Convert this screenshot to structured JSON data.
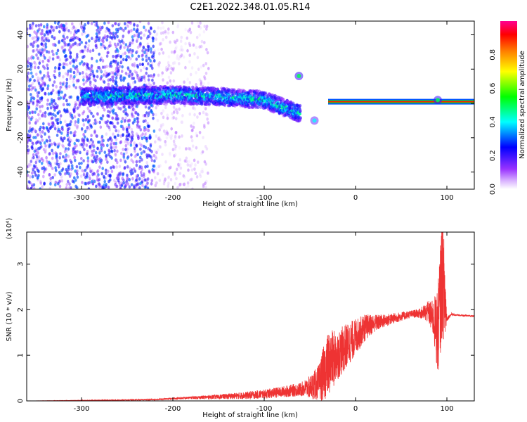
{
  "figure": {
    "title": "C2E1.2022.348.01.05.R14"
  },
  "chart_data": [
    {
      "type": "heatmap",
      "name": "spectrogram",
      "xlabel": "Height of straight line (km)",
      "ylabel": "Frequency (Hz)",
      "xlim": [
        -360,
        130
      ],
      "ylim": [
        -50,
        48
      ],
      "xticks": [
        -300,
        -200,
        -100,
        0,
        100
      ],
      "yticks": [
        -40,
        -20,
        0,
        20,
        40
      ],
      "grid": false,
      "colorbar": {
        "label": "Normalized spectral amplitude",
        "range": [
          0,
          1
        ],
        "ticks": [
          "0.0",
          "0.2",
          "0.4",
          "0.6",
          "0.8"
        ],
        "colors": [
          "#ffffff",
          "#c9a0ff",
          "#8000ff",
          "#0000ff",
          "#00ffff",
          "#00ff00",
          "#ffff00",
          "#ff8000",
          "#ff0000",
          "#ff00a0"
        ]
      },
      "features": [
        {
          "kind": "noise",
          "x_range": [
            -360,
            -220
          ],
          "f_range": [
            -50,
            48
          ],
          "amplitude": 0.25
        },
        {
          "kind": "noise",
          "x_range": [
            -220,
            -160
          ],
          "f_range": [
            -50,
            48
          ],
          "amplitude": 0.08
        },
        {
          "kind": "ridge",
          "points": [
            [
              -300,
              4
            ],
            [
              -200,
              5
            ],
            [
              -150,
              4
            ],
            [
              -100,
              2
            ],
            [
              -70,
              -4
            ],
            [
              -60,
              -6
            ]
          ],
          "amplitude": 0.45
        },
        {
          "kind": "line",
          "x_range": [
            -30,
            130
          ],
          "frequency": 1,
          "amplitude": 0.9
        },
        {
          "kind": "spot",
          "x": -62,
          "f": 16,
          "amplitude": 0.5
        },
        {
          "kind": "spot",
          "x": -45,
          "f": -10,
          "amplitude": 0.4
        },
        {
          "kind": "spot",
          "x": 90,
          "f": 2,
          "amplitude": 0.5
        }
      ]
    },
    {
      "type": "line",
      "name": "snr",
      "xlabel": "Height of straight line (km)",
      "ylabel": "SNR (10 * v/v)",
      "multiplier": "(x10⁴)",
      "xlim": [
        -360,
        130
      ],
      "ylim": [
        0,
        3.7
      ],
      "xticks": [
        -300,
        -200,
        -100,
        0,
        100
      ],
      "yticks": [
        0,
        1,
        2,
        3
      ],
      "grid": false,
      "color": "#ee3333",
      "series": [
        {
          "x": [
            -360,
            -300,
            -250,
            -220,
            -200,
            -180,
            -150,
            -120,
            -100,
            -80,
            -60,
            -50,
            -40,
            -35,
            -30,
            -25,
            -20,
            -10,
            0,
            10,
            20,
            30,
            40,
            50,
            60,
            70,
            80,
            85,
            90,
            95,
            98,
            100,
            105,
            110,
            120,
            130
          ],
          "y": [
            0.0,
            0.01,
            0.02,
            0.03,
            0.05,
            0.07,
            0.09,
            0.12,
            0.15,
            0.2,
            0.25,
            0.3,
            0.4,
            0.6,
            0.8,
            0.9,
            1.0,
            1.2,
            1.4,
            1.6,
            1.7,
            1.75,
            1.8,
            1.85,
            1.9,
            1.92,
            1.95,
            1.8,
            1.5,
            2.8,
            2.2,
            1.8,
            1.9,
            1.88,
            1.87,
            1.86
          ],
          "noise": [
            0.0,
            0.005,
            0.01,
            0.015,
            0.02,
            0.03,
            0.05,
            0.08,
            0.1,
            0.12,
            0.15,
            0.25,
            0.4,
            0.6,
            0.7,
            0.65,
            0.55,
            0.5,
            0.4,
            0.3,
            0.2,
            0.15,
            0.12,
            0.1,
            0.08,
            0.1,
            0.25,
            0.4,
            1.0,
            1.4,
            1.0,
            0.05,
            0.03,
            0.02,
            0.02,
            0.02
          ]
        }
      ]
    }
  ]
}
